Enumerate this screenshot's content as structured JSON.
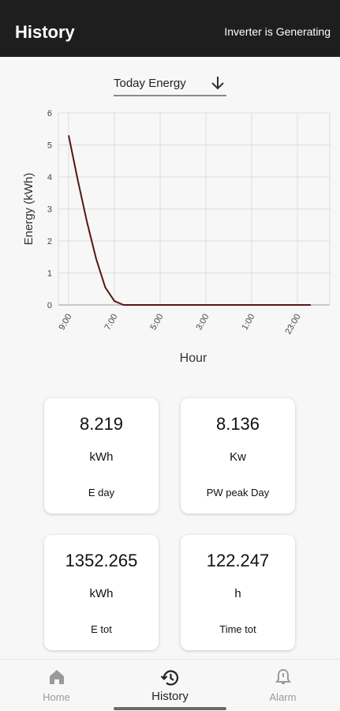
{
  "appbar": {
    "title": "History",
    "status": "Inverter is Generating"
  },
  "dropdown": {
    "label": "Today Energy",
    "icon": "arrow-down-icon"
  },
  "chart_data": {
    "type": "line",
    "xlabel": "Hour",
    "ylabel": "Energy (kWh)",
    "ylim": [
      0,
      6
    ],
    "yticks": [
      "0",
      "1",
      "2",
      "3",
      "4",
      "5",
      "6"
    ],
    "xticks": [
      "9:00",
      "7:00",
      "5:00",
      "3:00",
      "1:00",
      "23:00"
    ],
    "grid": true,
    "series": [
      {
        "color": "#5a1414",
        "x": [
          "9:00",
          "8:36",
          "8:12",
          "7:48",
          "7:24",
          "7:00",
          "6:36",
          "6:00",
          "5:00",
          "3:00",
          "1:00",
          "23:00",
          "22:25"
        ],
        "values": [
          5.3,
          3.9,
          2.6,
          1.45,
          0.55,
          0.12,
          0.0,
          0.0,
          0.0,
          0.0,
          0.0,
          0.0,
          0.0
        ]
      }
    ]
  },
  "cards": [
    {
      "value": "8.219",
      "unit": "kWh",
      "name": "E day"
    },
    {
      "value": "8.136",
      "unit": "Kw",
      "name": "PW peak Day"
    },
    {
      "value": "1352.265",
      "unit": "kWh",
      "name": "E tot"
    },
    {
      "value": "122.247",
      "unit": "h",
      "name": "Time tot"
    }
  ],
  "nav": [
    {
      "label": "Home",
      "icon": "home-icon"
    },
    {
      "label": "History",
      "icon": "history-icon"
    },
    {
      "label": "Alarm",
      "icon": "bell-icon"
    }
  ],
  "colors": {
    "appbar": "#1e1e1e",
    "line": "#5a1414",
    "active_nav": "#222222",
    "inactive_nav": "#9a9a9a"
  }
}
